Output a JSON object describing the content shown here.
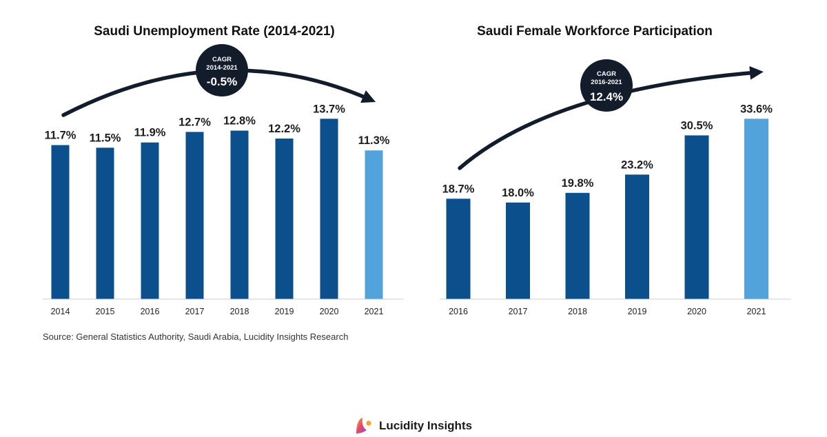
{
  "colors": {
    "bar_dark": "#0b4f8c",
    "bar_highlight": "#52a3dc",
    "arrow": "#131c2b",
    "badge": "#131c2b",
    "axis": "#cccccc"
  },
  "chart_data": [
    {
      "type": "bar",
      "title": "Saudi Unemployment Rate (2014-2021)",
      "categories": [
        "2014",
        "2015",
        "2016",
        "2017",
        "2018",
        "2019",
        "2020",
        "2021"
      ],
      "values": [
        11.7,
        11.5,
        11.9,
        12.7,
        12.8,
        12.2,
        13.7,
        11.3
      ],
      "value_labels": [
        "11.7%",
        "11.5%",
        "11.9%",
        "12.7%",
        "12.8%",
        "12.2%",
        "13.7%",
        "11.3%"
      ],
      "highlight_index": 7,
      "ylim": [
        0,
        15
      ],
      "grid": false,
      "annotation": {
        "label": "CAGR",
        "period": "2014-2021",
        "value": "-0.5%"
      }
    },
    {
      "type": "bar",
      "title": "Saudi Female Workforce Participation",
      "categories": [
        "2016",
        "2017",
        "2018",
        "2019",
        "2020",
        "2021"
      ],
      "values": [
        18.7,
        18.0,
        19.8,
        23.2,
        30.5,
        33.6
      ],
      "value_labels": [
        "18.7%",
        "18.0%",
        "19.8%",
        "23.2%",
        "30.5%",
        "33.6%"
      ],
      "highlight_index": 5,
      "ylim": [
        0,
        40
      ],
      "grid": false,
      "annotation": {
        "label": "CAGR",
        "period": "2016-2021",
        "value": "12.4%"
      }
    }
  ],
  "footer": {
    "source": "Source: General Statistics Authority, Saudi Arabia, Lucidity Insights Research",
    "brand_name": "Lucidity Insights",
    "logo_icon": "lucidity-logo-icon"
  }
}
